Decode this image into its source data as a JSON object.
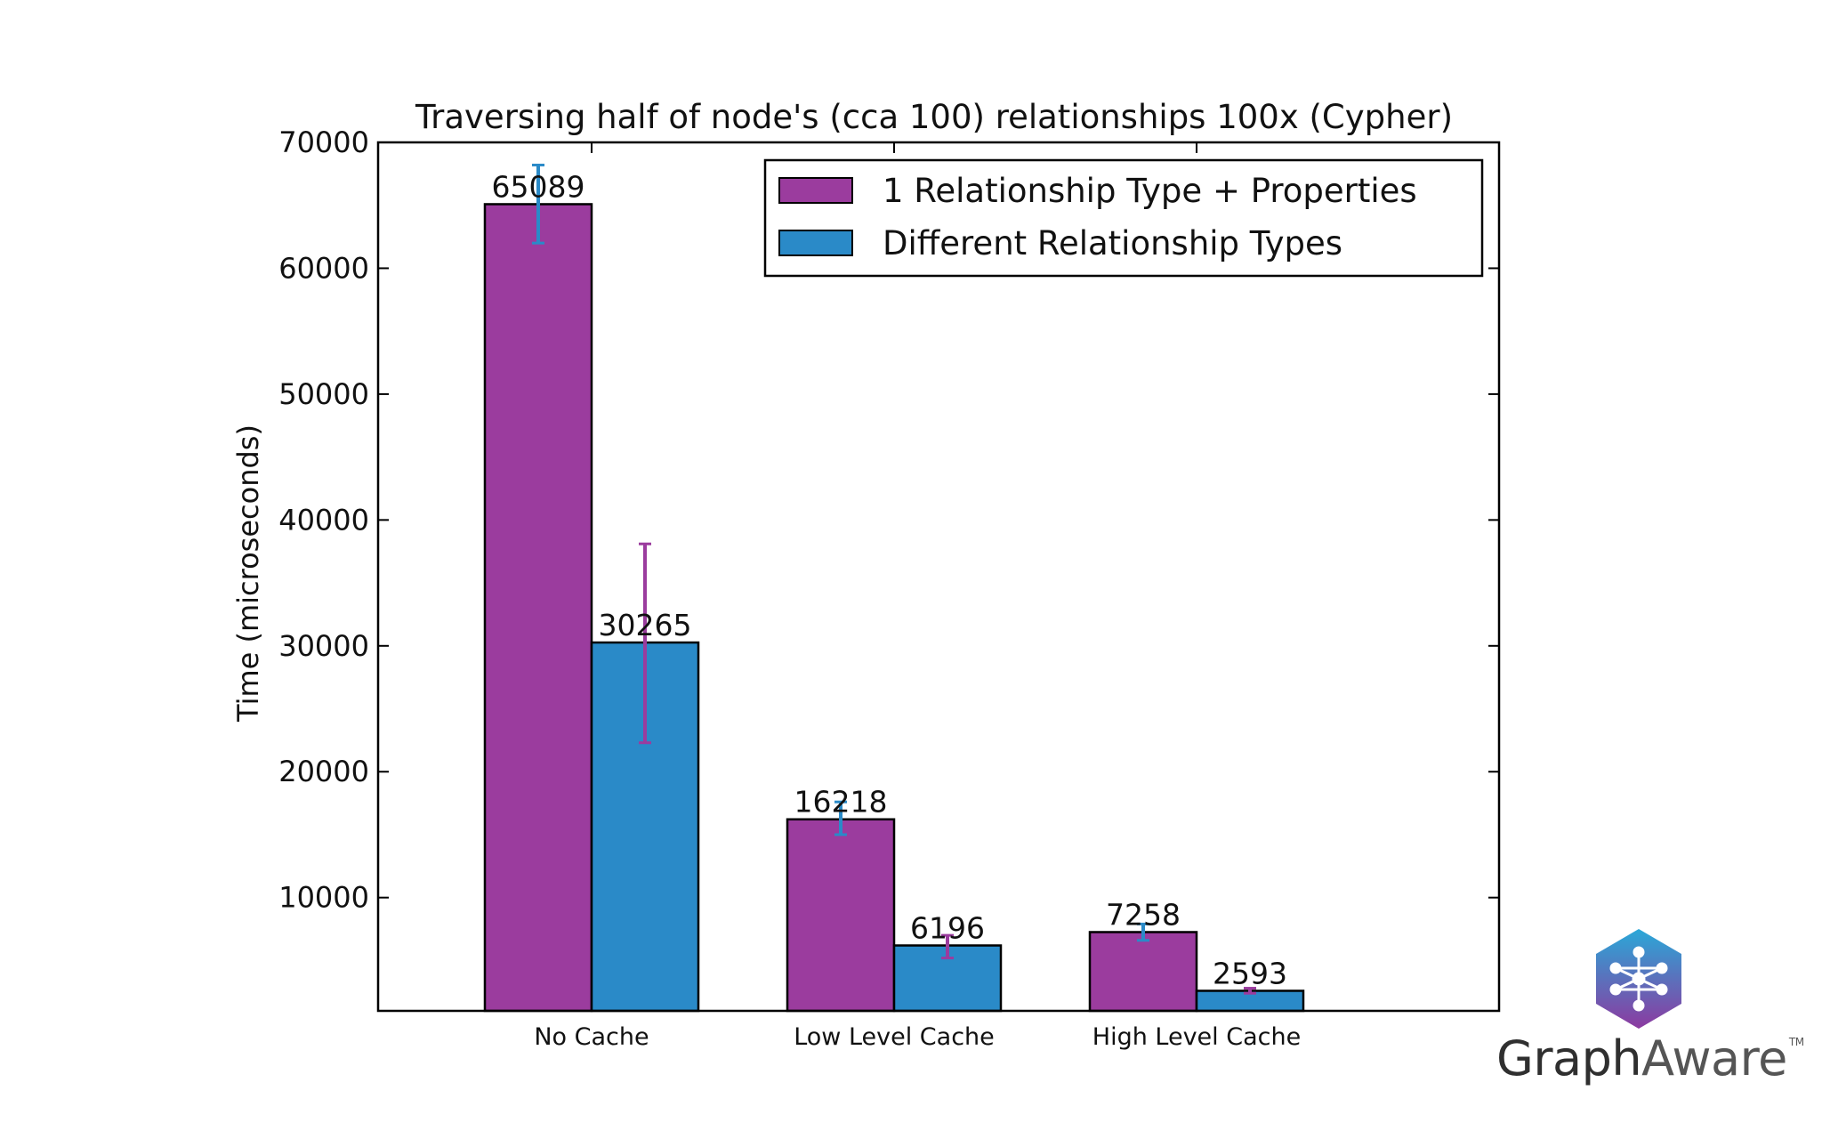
{
  "chart_data": {
    "type": "bar",
    "title": "Traversing half of node's (cca 100) relationships 100x (Cypher)",
    "xlabel": "",
    "ylabel": "Time (microseconds)",
    "ylim": [
      1000,
      70000
    ],
    "yticks": [
      10000,
      20000,
      30000,
      40000,
      50000,
      60000,
      70000
    ],
    "categories": [
      "No Cache",
      "Low Level Cache",
      "High Level Cache"
    ],
    "series": [
      {
        "name": "1 Relationship Type + Properties",
        "color": "#9b3c9e",
        "errorbar_color": "#2a8ac8",
        "values": [
          65089,
          16218,
          7258
        ],
        "labels": [
          "65089",
          "16218",
          "7258"
        ],
        "error_low": [
          62000,
          15000,
          6600
        ],
        "error_high": [
          68200,
          17600,
          7900
        ]
      },
      {
        "name": "Different Relationship Types",
        "color": "#2a8ac8",
        "errorbar_color": "#9b3c9e",
        "values": [
          30265,
          6196,
          2593
        ],
        "labels": [
          "30265",
          "6196",
          "2593"
        ],
        "error_low": [
          22300,
          5200,
          2400
        ],
        "error_high": [
          38100,
          7000,
          2800
        ]
      }
    ],
    "legend_position": "top-right",
    "grid": false
  },
  "branding": {
    "logo_text_bold": "Graph",
    "logo_text_light": "Aware",
    "logo_tm": "TM",
    "logo_color_top": "#2aa8d8",
    "logo_color_bottom": "#8c3aa0"
  }
}
